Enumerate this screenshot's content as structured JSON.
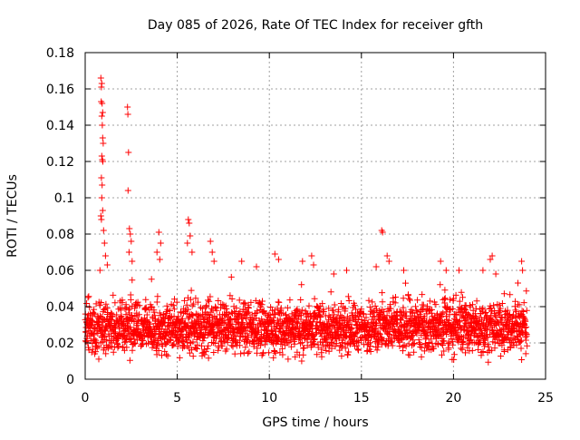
{
  "chart_data": {
    "type": "scatter",
    "title": "Day 085 of 2026, Rate Of TEC Index for receiver gfth",
    "xlabel": "GPS time / hours",
    "ylabel": "ROTI / TECUs",
    "xlim": [
      0,
      25
    ],
    "ylim": [
      0,
      0.18
    ],
    "xticks": [
      0,
      5,
      10,
      15,
      20,
      25
    ],
    "xtick_labels": [
      "0",
      "5",
      "10",
      "15",
      "20",
      "25"
    ],
    "yticks": [
      0,
      0.02,
      0.04,
      0.06,
      0.08,
      0.1,
      0.12,
      0.14,
      0.16,
      0.18
    ],
    "ytick_labels": [
      "0",
      "0.02",
      "0.04",
      "0.06",
      "0.08",
      "0.1",
      "0.12",
      "0.14",
      "0.16",
      "0.18"
    ],
    "grid": true,
    "marker": "+",
    "series_color": "#ff0000",
    "grid_color": "#a0a0a0",
    "series": [
      {
        "name": "ROTI",
        "band_x_range": [
          0,
          24
        ],
        "band_y_typical": [
          0.01,
          0.045
        ],
        "outliers": [
          [
            0.85,
            0.166
          ],
          [
            0.9,
            0.163
          ],
          [
            0.88,
            0.161
          ],
          [
            0.87,
            0.153
          ],
          [
            0.92,
            0.152
          ],
          [
            0.95,
            0.147
          ],
          [
            0.9,
            0.145
          ],
          [
            0.93,
            0.14
          ],
          [
            0.95,
            0.133
          ],
          [
            0.98,
            0.13
          ],
          [
            0.9,
            0.123
          ],
          [
            0.93,
            0.121
          ],
          [
            0.96,
            0.12
          ],
          [
            0.88,
            0.111
          ],
          [
            0.92,
            0.107
          ],
          [
            0.9,
            0.1
          ],
          [
            0.95,
            0.093
          ],
          [
            0.85,
            0.09
          ],
          [
            0.88,
            0.088
          ],
          [
            1.0,
            0.082
          ],
          [
            1.05,
            0.075
          ],
          [
            1.1,
            0.068
          ],
          [
            1.2,
            0.063
          ],
          [
            0.8,
            0.06
          ],
          [
            2.3,
            0.15
          ],
          [
            2.32,
            0.146
          ],
          [
            2.35,
            0.125
          ],
          [
            2.33,
            0.104
          ],
          [
            2.4,
            0.083
          ],
          [
            2.45,
            0.08
          ],
          [
            2.5,
            0.076
          ],
          [
            2.38,
            0.07
          ],
          [
            2.55,
            0.065
          ],
          [
            4.0,
            0.081
          ],
          [
            4.1,
            0.075
          ],
          [
            3.9,
            0.07
          ],
          [
            4.05,
            0.066
          ],
          [
            5.6,
            0.088
          ],
          [
            5.65,
            0.086
          ],
          [
            5.7,
            0.079
          ],
          [
            5.55,
            0.075
          ],
          [
            5.8,
            0.07
          ],
          [
            6.8,
            0.076
          ],
          [
            6.9,
            0.07
          ],
          [
            7.0,
            0.065
          ],
          [
            8.5,
            0.065
          ],
          [
            9.3,
            0.062
          ],
          [
            10.3,
            0.069
          ],
          [
            10.5,
            0.066
          ],
          [
            11.8,
            0.065
          ],
          [
            12.3,
            0.068
          ],
          [
            12.4,
            0.063
          ],
          [
            13.5,
            0.058
          ],
          [
            14.2,
            0.06
          ],
          [
            15.8,
            0.062
          ],
          [
            16.1,
            0.082
          ],
          [
            16.15,
            0.081
          ],
          [
            16.4,
            0.068
          ],
          [
            16.5,
            0.065
          ],
          [
            17.3,
            0.06
          ],
          [
            19.3,
            0.065
          ],
          [
            19.6,
            0.06
          ],
          [
            20.3,
            0.06
          ],
          [
            21.6,
            0.06
          ],
          [
            22.0,
            0.066
          ],
          [
            22.1,
            0.068
          ],
          [
            22.3,
            0.058
          ],
          [
            23.7,
            0.065
          ],
          [
            23.75,
            0.06
          ],
          [
            23.5,
            0.053
          ]
        ]
      }
    ]
  }
}
